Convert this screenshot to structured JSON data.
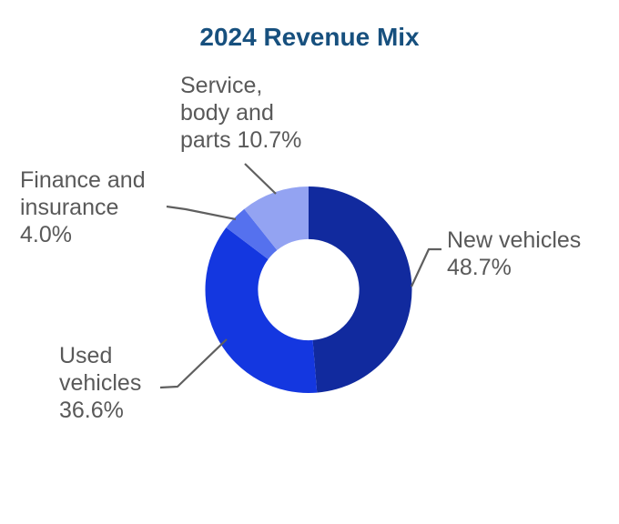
{
  "title": {
    "text": "2024 Revenue Mix",
    "color": "#17507E"
  },
  "callouts": {
    "service": {
      "text": "Service,\nbody and\nparts 10.7%"
    },
    "finance": {
      "text": "Finance and\ninsurance\n4.0%"
    },
    "new": {
      "text": "New vehicles\n48.7%"
    },
    "used": {
      "text": "Used\nvehicles\n36.6%"
    }
  },
  "chart_data": {
    "type": "pie",
    "subtype": "donut",
    "title": "2024 Revenue Mix",
    "categories": [
      "New vehicles",
      "Used vehicles",
      "Finance and insurance",
      "Service, body and parts"
    ],
    "values": [
      48.7,
      36.6,
      4.0,
      10.7
    ],
    "unit": "%",
    "colors": [
      "#112A9E",
      "#1437E0",
      "#5571EE",
      "#93A3F2"
    ],
    "start_angle_deg": 0,
    "direction": "clockwise",
    "inner_radius_ratio": 0.49,
    "legend_position": "none",
    "labels_as_callouts": true,
    "leader_line_color": "#5F5F5F",
    "label_text_color": "#595959"
  }
}
